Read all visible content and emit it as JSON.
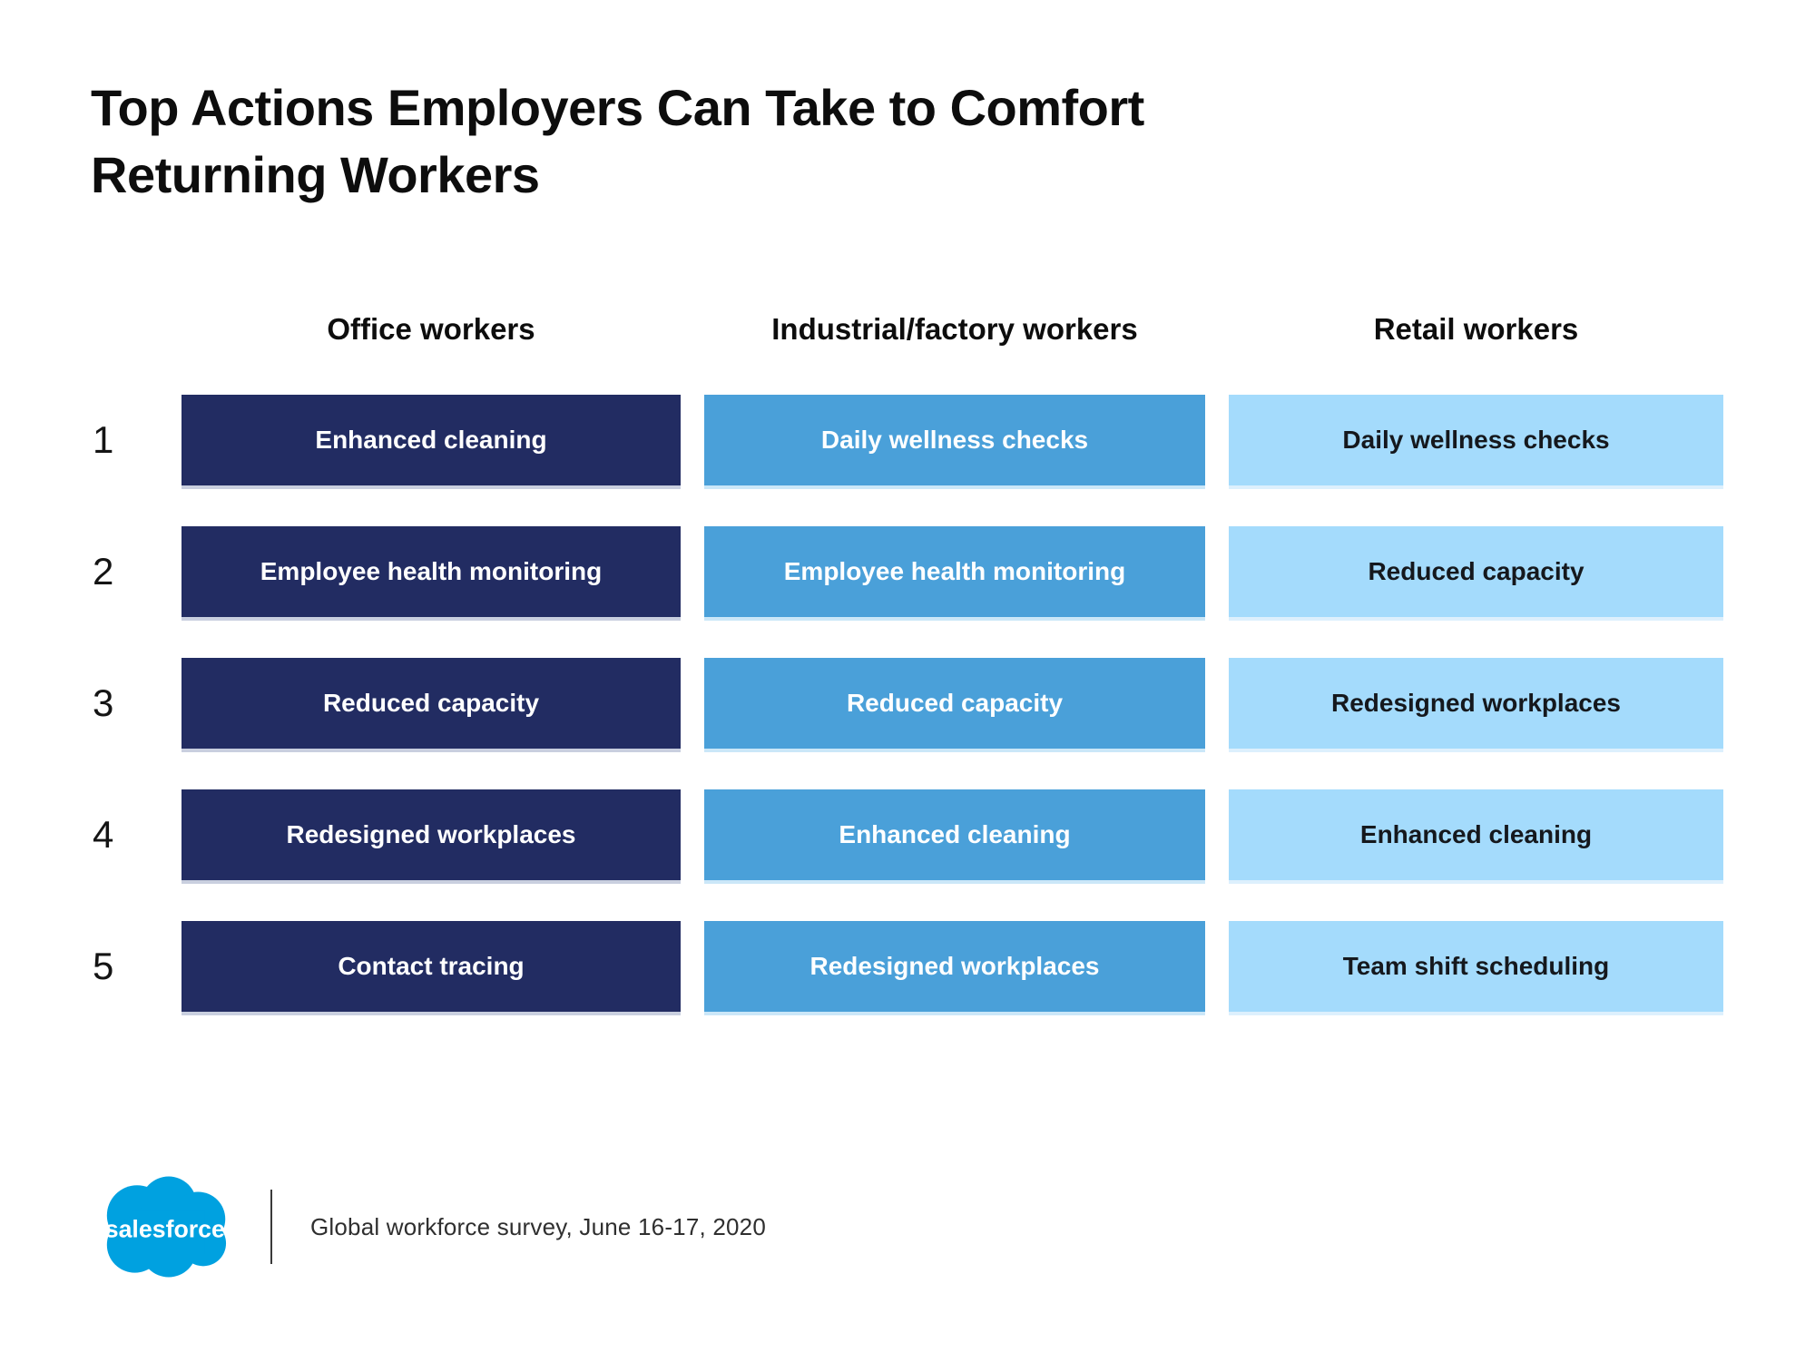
{
  "title": {
    "text": "Top Actions Employers Can Take to Comfort Returning Workers",
    "line1": "Top Actions Employers Can Take to Comfort",
    "line2": "Returning Workers"
  },
  "columns": [
    {
      "label": "Office workers",
      "bar_color": "#222c62",
      "text_color": "#ffffff",
      "edge_color": "#c9cfdf"
    },
    {
      "label": "Industrial/factory workers",
      "bar_color": "#4aa0d9",
      "text_color": "#ffffff",
      "edge_color": "#cbe7f8"
    },
    {
      "label": "Retail workers",
      "bar_color": "#a4dbfc",
      "text_color": "#15181d",
      "edge_color": "#ddf0fd"
    }
  ],
  "rows": [
    {
      "rank": "1",
      "cells": [
        "Enhanced cleaning",
        "Daily wellness checks",
        "Daily wellness checks"
      ]
    },
    {
      "rank": "2",
      "cells": [
        "Employee health monitoring",
        "Employee health monitoring",
        "Reduced capacity"
      ]
    },
    {
      "rank": "3",
      "cells": [
        "Reduced capacity",
        "Reduced capacity",
        "Redesigned workplaces"
      ]
    },
    {
      "rank": "4",
      "cells": [
        "Redesigned workplaces",
        "Enhanced cleaning",
        "Enhanced cleaning"
      ]
    },
    {
      "rank": "5",
      "cells": [
        "Contact tracing",
        "Redesigned workplaces",
        "Team shift scheduling"
      ]
    }
  ],
  "footer": {
    "logo_text": "salesforce",
    "logo_color": "#00a1e0",
    "source": "Global workforce survey, June 16-17, 2020"
  },
  "chart_data": {
    "type": "table",
    "title": "Top Actions Employers Can Take to Comfort Returning Workers",
    "columns": [
      "Rank",
      "Office workers",
      "Industrial/factory workers",
      "Retail workers"
    ],
    "rows": [
      [
        "1",
        "Enhanced cleaning",
        "Daily wellness checks",
        "Daily wellness checks"
      ],
      [
        "2",
        "Employee health monitoring",
        "Employee health monitoring",
        "Reduced capacity"
      ],
      [
        "3",
        "Reduced capacity",
        "Reduced capacity",
        "Redesigned workplaces"
      ],
      [
        "4",
        "Redesigned workplaces",
        "Enhanced cleaning",
        "Enhanced cleaning"
      ],
      [
        "5",
        "Contact tracing",
        "Redesigned workplaces",
        "Team shift scheduling"
      ]
    ],
    "series_colors": [
      "#222c62",
      "#4aa0d9",
      "#a4dbfc"
    ],
    "source": "Global workforce survey, June 16-17, 2020",
    "legend_position": "none",
    "grid": false
  }
}
